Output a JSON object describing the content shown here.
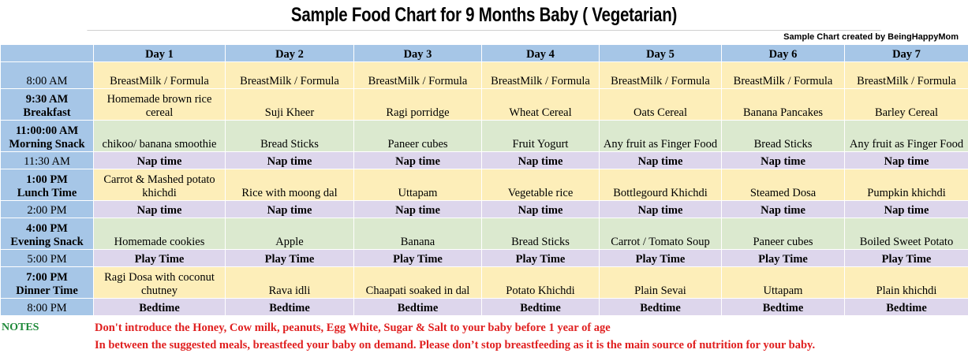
{
  "title": "Sample Food Chart for 9 Months Baby  ( Vegetarian)",
  "credit": "Sample Chart created by BeingHappyMom",
  "days": [
    "Day 1",
    "Day 2",
    "Day 3",
    "Day 4",
    "Day 5",
    "Day 6",
    "Day 7"
  ],
  "rows": [
    {
      "time": "8:00 AM",
      "label": "",
      "color": "yellow",
      "h": "h1",
      "cells": [
        "BreastMilk / Formula",
        "BreastMilk / Formula",
        "BreastMilk / Formula",
        "BreastMilk / Formula",
        "BreastMilk / Formula",
        "BreastMilk / Formula",
        "BreastMilk / Formula"
      ]
    },
    {
      "time": "9:30 AM",
      "label": "Breakfast",
      "color": "yellow",
      "h": "h2",
      "cells": [
        "Homemade brown rice cereal",
        "Suji Kheer",
        "Ragi porridge",
        "Wheat Cereal",
        "Oats Cereal",
        "Banana Pancakes",
        "Barley Cereal"
      ]
    },
    {
      "time": "11:00:00 AM",
      "label": "Morning Snack",
      "color": "green",
      "h": "h2",
      "cells": [
        "chikoo/ banana smoothie",
        "Bread Sticks",
        "Paneer cubes",
        "Fruit Yogurt",
        "Any fruit as Finger Food",
        "Bread Sticks",
        "Any fruit as Finger Food"
      ]
    },
    {
      "time": "11:30 AM",
      "label": "",
      "color": "purple",
      "h": "h3",
      "cells": [
        "Nap time",
        "Nap time",
        "Nap time",
        "Nap time",
        "Nap time",
        "Nap time",
        "Nap time"
      ]
    },
    {
      "time": "1:00 PM",
      "label": "Lunch Time",
      "color": "yellow",
      "h": "h2",
      "cells": [
        "Carrot & Mashed potato khichdi",
        "Rice with moong dal",
        "Uttapam",
        "Vegetable rice",
        "Bottlegourd Khichdi",
        "Steamed Dosa",
        "Pumpkin khichdi"
      ]
    },
    {
      "time": "2:00 PM",
      "label": "",
      "color": "purple",
      "h": "h3",
      "cells": [
        "Nap time",
        "Nap time",
        "Nap time",
        "Nap time",
        "Nap time",
        "Nap time",
        "Nap time"
      ]
    },
    {
      "time": "4:00 PM",
      "label": "Evening Snack",
      "color": "green",
      "h": "h2",
      "cells": [
        "Homemade cookies",
        "Apple",
        "Banana",
        "Bread Sticks",
        "Carrot / Tomato Soup",
        "Paneer cubes",
        "Boiled Sweet Potato"
      ]
    },
    {
      "time": "5:00 PM",
      "label": "",
      "color": "purple",
      "h": "h3",
      "cells": [
        "Play Time",
        "Play Time",
        "Play Time",
        "Play Time",
        "Play Time",
        "Play Time",
        "Play Time"
      ]
    },
    {
      "time": "7:00 PM",
      "label": "Dinner Time",
      "color": "yellow",
      "h": "h2",
      "cells": [
        "Ragi Dosa with coconut chutney",
        "Rava idli",
        "Chaapati soaked in dal",
        "Potato Khichdi",
        "Plain Sevai",
        "Uttapam",
        "Plain khichdi"
      ]
    },
    {
      "time": "8:00 PM",
      "label": "",
      "color": "purple",
      "h": "h3",
      "cells": [
        "Bedtime",
        "Bedtime",
        "Bedtime",
        "Bedtime",
        "Bedtime",
        "Bedtime",
        "Bedtime"
      ]
    }
  ],
  "notes": {
    "label": "NOTES",
    "line1": "Don't introduce the Honey, Cow milk, peanuts, Egg White, Sugar & Salt to your baby before 1 year of age",
    "line2": "In between the suggested meals, breastfeed your baby on demand. Please don’t stop breastfeeding as it is the main source of nutrition for your baby."
  }
}
